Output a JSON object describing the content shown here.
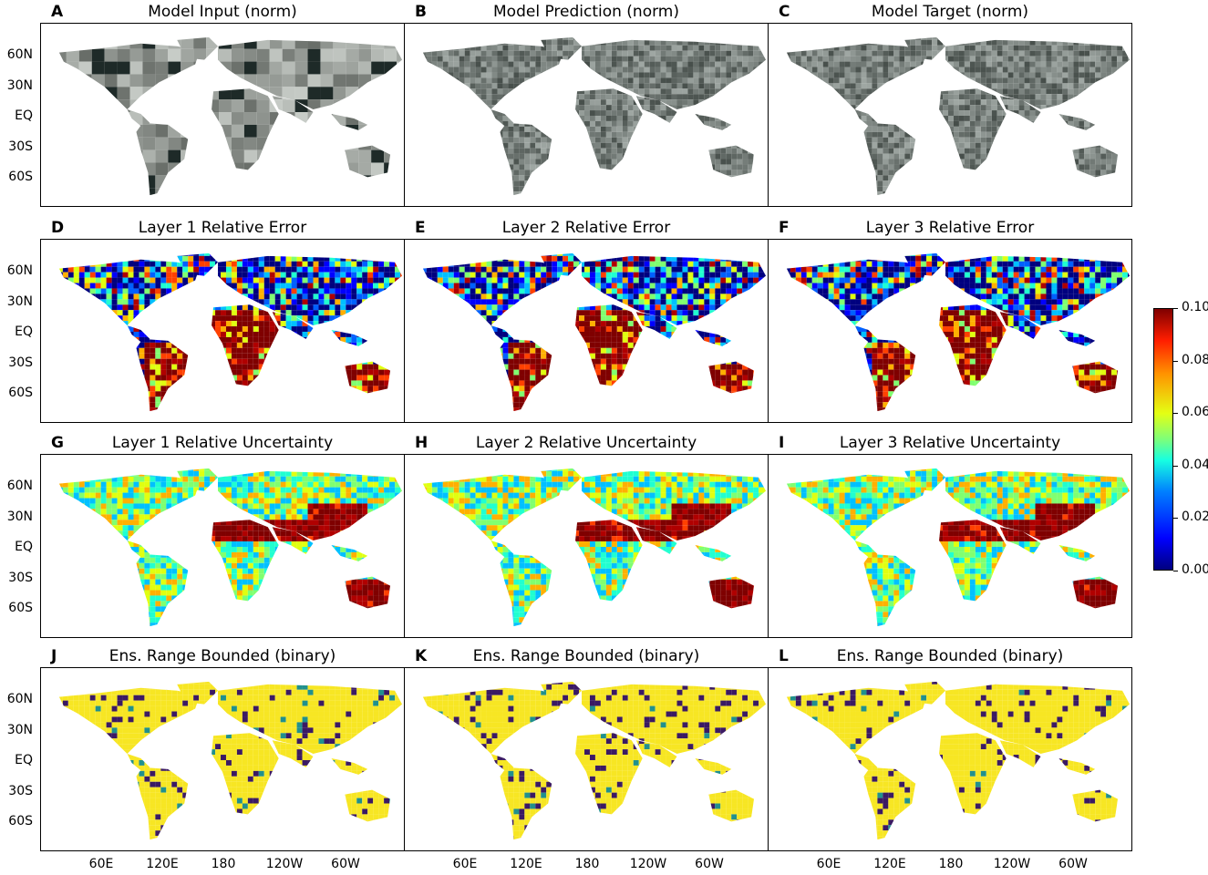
{
  "panels": [
    {
      "letter": "A",
      "title": "Model Input (norm)",
      "style": "input"
    },
    {
      "letter": "B",
      "title": "Model Prediction (norm)",
      "style": "rgb"
    },
    {
      "letter": "C",
      "title": "Model Target (norm)",
      "style": "rgb"
    },
    {
      "letter": "D",
      "title": "Layer 1 Relative Error",
      "style": "error"
    },
    {
      "letter": "E",
      "title": "Layer 2 Relative Error",
      "style": "error"
    },
    {
      "letter": "F",
      "title": "Layer 3 Relative Error",
      "style": "error"
    },
    {
      "letter": "G",
      "title": "Layer 1 Relative Uncertainty",
      "style": "uncert"
    },
    {
      "letter": "H",
      "title": "Layer 2 Relative Uncertainty",
      "style": "uncert"
    },
    {
      "letter": "I",
      "title": "Layer 3 Relative Uncertainty",
      "style": "uncert"
    },
    {
      "letter": "J",
      "title": "Ens. Range Bounded (binary)",
      "style": "binary"
    },
    {
      "letter": "K",
      "title": "Ens. Range Bounded (binary)",
      "style": "binary"
    },
    {
      "letter": "L",
      "title": "Ens. Range Bounded (binary)",
      "style": "binary"
    }
  ],
  "lat_ticks": [
    "60N",
    "30N",
    "EQ",
    "30S",
    "60S"
  ],
  "lon_ticks": [
    "60E",
    "120E",
    "180",
    "120W",
    "60W"
  ],
  "colorbar": {
    "ticks": [
      "0.10",
      "0.08",
      "0.06",
      "0.04",
      "0.02",
      "0.00"
    ],
    "range": [
      0.0,
      0.1
    ],
    "colormap": "jet"
  },
  "colors": {
    "error_low": "#1f4cff",
    "error_high": "#8b0000",
    "binary_true": "#f7e623",
    "binary_false": "#3b1a63",
    "input_gray": "#8a8f8c"
  }
}
